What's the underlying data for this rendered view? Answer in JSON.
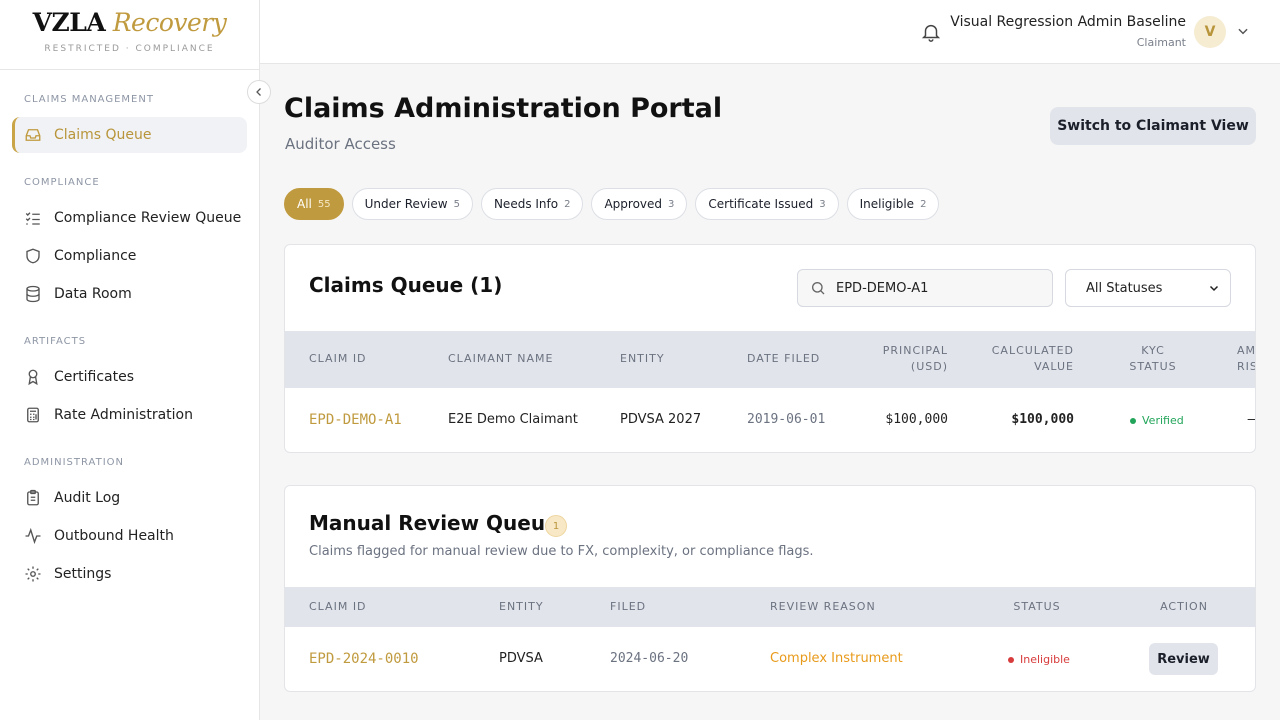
{
  "brand": {
    "name_a": "VZLA",
    "name_b": "Recovery",
    "tagline": "RESTRICTED · COMPLIANCE"
  },
  "sidebar": {
    "sections": [
      {
        "title": "CLAIMS MANAGEMENT",
        "items": [
          {
            "label": "Claims Queue",
            "icon": "inbox-icon",
            "active": true
          }
        ]
      },
      {
        "title": "COMPLIANCE",
        "items": [
          {
            "label": "Compliance Review Queue",
            "icon": "list-check-icon"
          },
          {
            "label": "Compliance",
            "icon": "shield-icon"
          },
          {
            "label": "Data Room",
            "icon": "database-icon"
          }
        ]
      },
      {
        "title": "ARTIFACTS",
        "items": [
          {
            "label": "Certificates",
            "icon": "award-icon"
          },
          {
            "label": "Rate Administration",
            "icon": "calculator-icon"
          }
        ]
      },
      {
        "title": "ADMINISTRATION",
        "items": [
          {
            "label": "Audit Log",
            "icon": "clipboard-icon"
          },
          {
            "label": "Outbound Health",
            "icon": "activity-icon"
          },
          {
            "label": "Settings",
            "icon": "gear-icon"
          }
        ]
      }
    ]
  },
  "header": {
    "user_name": "Visual Regression Admin Baseline",
    "user_role": "Claimant",
    "avatar_initial": "V"
  },
  "page": {
    "title": "Claims Administration Portal",
    "subtitle": "Auditor Access",
    "switch_button": "Switch to Claimant View"
  },
  "filters": [
    {
      "label": "All",
      "count": "55",
      "active": true
    },
    {
      "label": "Under Review",
      "count": "5"
    },
    {
      "label": "Needs Info",
      "count": "2"
    },
    {
      "label": "Approved",
      "count": "3"
    },
    {
      "label": "Certificate Issued",
      "count": "3"
    },
    {
      "label": "Ineligible",
      "count": "2"
    }
  ],
  "claims_queue": {
    "title": "Claims Queue (1)",
    "search_value": "EPD-DEMO-A1",
    "status_select": "All Statuses",
    "columns": [
      "CLAIM ID",
      "CLAIMANT NAME",
      "ENTITY",
      "DATE FILED",
      "PRINCIPAL\n(USD)",
      "CALCULATED\nVALUE",
      "KYC\nSTATUS",
      "AM\nRIS"
    ],
    "rows": [
      {
        "claim_id": "EPD-DEMO-A1",
        "claimant": "E2E Demo Claimant",
        "entity": "PDVSA 2027",
        "date_filed": "2019-06-01",
        "principal": "$100,000",
        "calculated": "$100,000",
        "kyc": "Verified",
        "aml": "—"
      }
    ]
  },
  "manual_review": {
    "title": "Manual Review Queue",
    "count": "1",
    "description": "Claims flagged for manual review due to FX, complexity, or compliance flags.",
    "columns": [
      "CLAIM ID",
      "ENTITY",
      "FILED",
      "REVIEW REASON",
      "STATUS",
      "ACTION"
    ],
    "rows": [
      {
        "claim_id": "EPD-2024-0010",
        "entity": "PDVSA",
        "filed": "2024-06-20",
        "reason": "Complex Instrument",
        "status": "Ineligible",
        "action": "Review"
      }
    ]
  },
  "colors": {
    "accent": "#c09a3e",
    "success": "#22a55a",
    "danger": "#d83b3b",
    "reason": "#e89a1a"
  }
}
